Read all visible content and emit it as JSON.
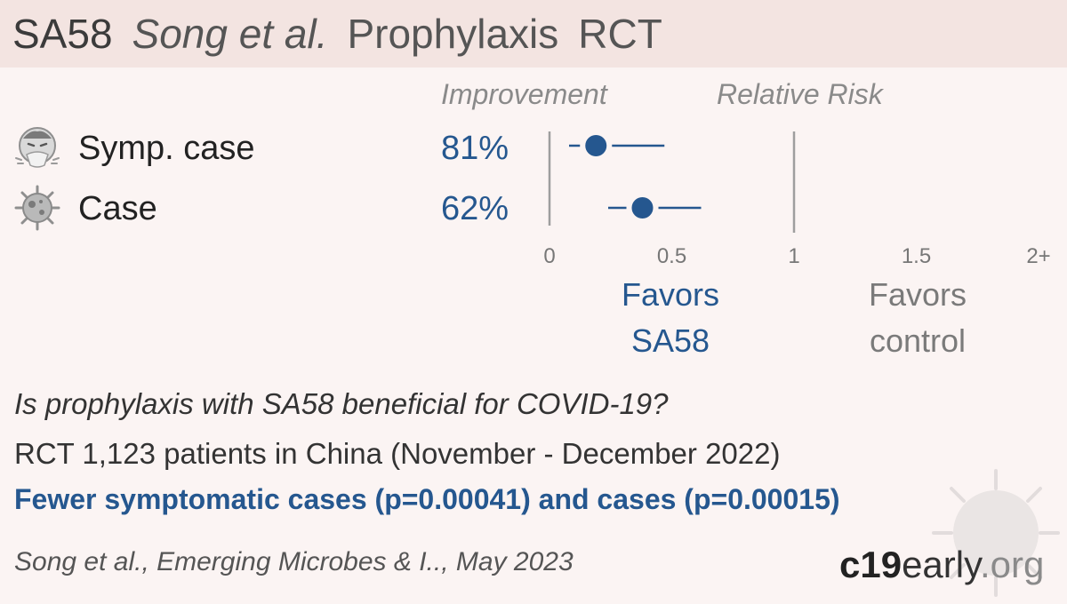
{
  "header": {
    "drug": "SA58",
    "authors": "Song et al.",
    "treatment_type": "Prophylaxis",
    "design": "RCT"
  },
  "columns": {
    "improvement": "Improvement",
    "relative_risk": "Relative Risk"
  },
  "rows": [
    {
      "label": "Symp. case",
      "icon": "sneezing-face-icon",
      "improvement": "81%"
    },
    {
      "label": "Case",
      "icon": "virus-icon",
      "improvement": "62%"
    }
  ],
  "favors": {
    "treatment": [
      "Favors",
      "SA58"
    ],
    "control": [
      "Favors",
      "control"
    ]
  },
  "summary": {
    "question": "Is prophylaxis with SA58 beneficial for COVID-19?",
    "details": "RCT 1,123 patients in China (November - December 2022)",
    "conclusion": "Fewer symptomatic cases (p=0.00041) and cases (p=0.00015)",
    "citation": "Song et al., Emerging Microbes & I.., May 2023"
  },
  "brand": {
    "part1": "c19",
    "part2": "early",
    "part3": ".org"
  },
  "colors": {
    "accent": "#25578f",
    "point": "#25578f",
    "axis": "#9e9e9e"
  },
  "chart_data": {
    "type": "scatter",
    "subtype": "forest",
    "x_axis": {
      "label": "Relative Risk",
      "ticks": [
        "0",
        "0.5",
        "1",
        "1.5",
        "2+"
      ],
      "tick_values": [
        0,
        0.5,
        1,
        1.5,
        2
      ],
      "xlim": [
        0,
        2
      ]
    },
    "reference_line": 1,
    "series": [
      {
        "name": "Symp. case",
        "estimate": 0.19,
        "ci_low": 0.08,
        "ci_high": 0.47
      },
      {
        "name": "Case",
        "estimate": 0.38,
        "ci_low": 0.24,
        "ci_high": 0.62
      }
    ]
  }
}
